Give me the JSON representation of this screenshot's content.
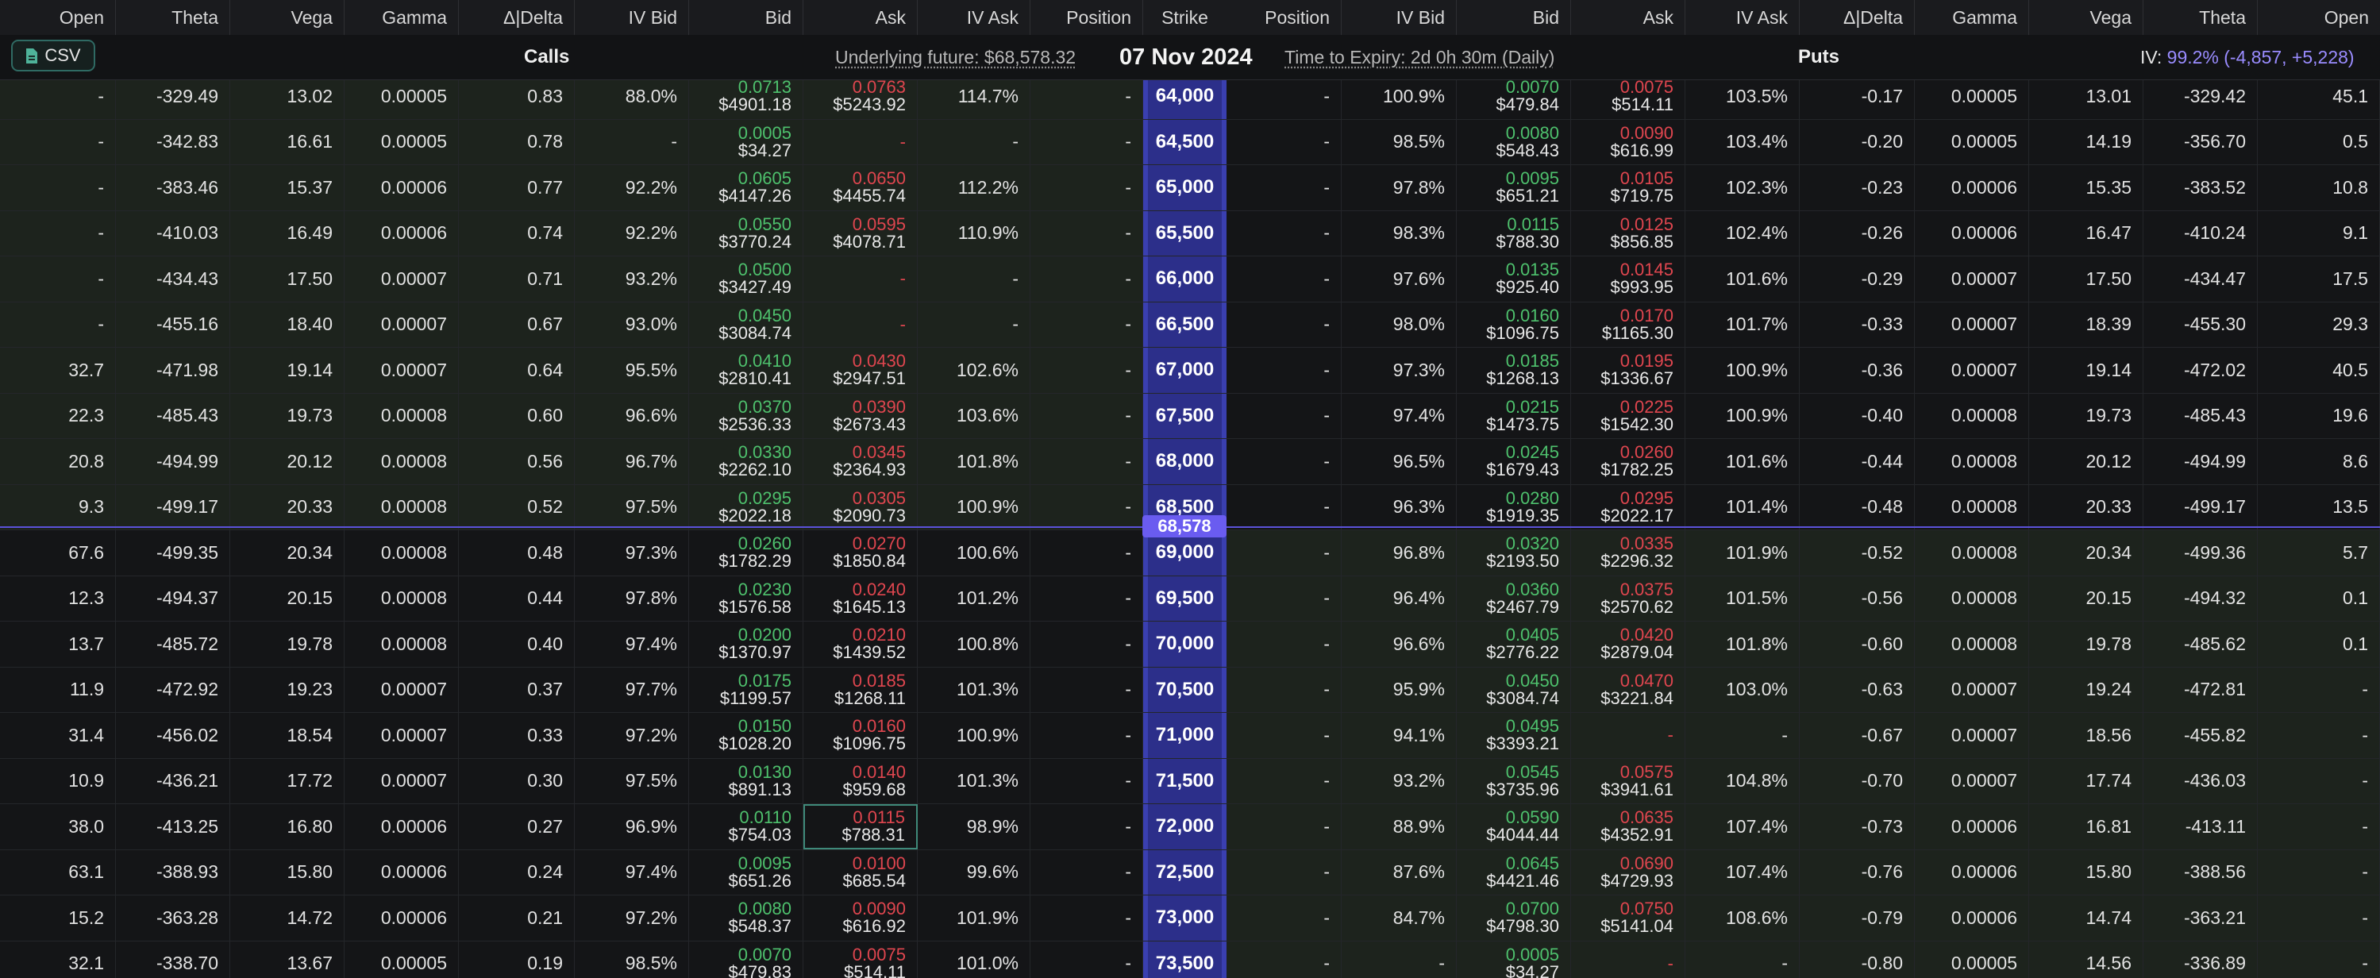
{
  "header": {
    "call_cols": [
      "Open",
      "Theta",
      "Vega",
      "Gamma",
      "Δ|Delta",
      "IV Bid",
      "Bid",
      "Ask",
      "IV Ask",
      "Position"
    ],
    "strike_col": "Strike",
    "put_cols": [
      "Position",
      "IV Bid",
      "Bid",
      "Ask",
      "IV Ask",
      "Δ|Delta",
      "Gamma",
      "Vega",
      "Theta",
      "Open"
    ]
  },
  "infobar": {
    "csv_label": "CSV",
    "calls_label": "Calls",
    "underlying_label": "Underlying future: $68,578.32",
    "date": "07 Nov 2024",
    "expiry_label": "Time to Expiry: 2d 0h 30m (Daily)",
    "puts_label": "Puts",
    "iv_prefix": "IV:",
    "iv_value": "99.2% (-4,857, +5,228)"
  },
  "underlying_price": "68,578",
  "colors": {
    "bid": "#4ec16d",
    "ask": "#e0464f",
    "strike_bg": "#2c2f8a",
    "accent": "#6a5cf0"
  },
  "rows": [
    {
      "strike": "64,000",
      "c": {
        "open": "-",
        "theta": "-329.49",
        "vega": "13.02",
        "gamma": "0.00005",
        "delta": "0.83",
        "ivbid": "88.0%",
        "bid": [
          "0.0713",
          "$4901.18"
        ],
        "ask": [
          "0.0763",
          "$5243.92"
        ],
        "ivask": "114.7%",
        "pos": "-"
      },
      "p": {
        "pos": "-",
        "ivbid": "100.9%",
        "bid": [
          "0.0070",
          "$479.84"
        ],
        "ask": [
          "0.0075",
          "$514.11"
        ],
        "ivask": "103.5%",
        "delta": "-0.17",
        "gamma": "0.00005",
        "vega": "13.01",
        "theta": "-329.42",
        "open": "45.1"
      }
    },
    {
      "strike": "64,500",
      "c": {
        "open": "-",
        "theta": "-342.83",
        "vega": "16.61",
        "gamma": "0.00005",
        "delta": "0.78",
        "ivbid": "-",
        "bid": [
          "0.0005",
          "$34.27"
        ],
        "ask": [
          "-",
          ""
        ],
        "ivask": "-",
        "pos": "-"
      },
      "p": {
        "pos": "-",
        "ivbid": "98.5%",
        "bid": [
          "0.0080",
          "$548.43"
        ],
        "ask": [
          "0.0090",
          "$616.99"
        ],
        "ivask": "103.4%",
        "delta": "-0.20",
        "gamma": "0.00005",
        "vega": "14.19",
        "theta": "-356.70",
        "open": "0.5"
      }
    },
    {
      "strike": "65,000",
      "c": {
        "open": "-",
        "theta": "-383.46",
        "vega": "15.37",
        "gamma": "0.00006",
        "delta": "0.77",
        "ivbid": "92.2%",
        "bid": [
          "0.0605",
          "$4147.26"
        ],
        "ask": [
          "0.0650",
          "$4455.74"
        ],
        "ivask": "112.2%",
        "pos": "-"
      },
      "p": {
        "pos": "-",
        "ivbid": "97.8%",
        "bid": [
          "0.0095",
          "$651.21"
        ],
        "ask": [
          "0.0105",
          "$719.75"
        ],
        "ivask": "102.3%",
        "delta": "-0.23",
        "gamma": "0.00006",
        "vega": "15.35",
        "theta": "-383.52",
        "open": "10.8"
      }
    },
    {
      "strike": "65,500",
      "c": {
        "open": "-",
        "theta": "-410.03",
        "vega": "16.49",
        "gamma": "0.00006",
        "delta": "0.74",
        "ivbid": "92.2%",
        "bid": [
          "0.0550",
          "$3770.24"
        ],
        "ask": [
          "0.0595",
          "$4078.71"
        ],
        "ivask": "110.9%",
        "pos": "-"
      },
      "p": {
        "pos": "-",
        "ivbid": "98.3%",
        "bid": [
          "0.0115",
          "$788.30"
        ],
        "ask": [
          "0.0125",
          "$856.85"
        ],
        "ivask": "102.4%",
        "delta": "-0.26",
        "gamma": "0.00006",
        "vega": "16.47",
        "theta": "-410.24",
        "open": "9.1"
      }
    },
    {
      "strike": "66,000",
      "c": {
        "open": "-",
        "theta": "-434.43",
        "vega": "17.50",
        "gamma": "0.00007",
        "delta": "0.71",
        "ivbid": "93.2%",
        "bid": [
          "0.0500",
          "$3427.49"
        ],
        "ask": [
          "-",
          ""
        ],
        "ivask": "-",
        "pos": "-"
      },
      "p": {
        "pos": "-",
        "ivbid": "97.6%",
        "bid": [
          "0.0135",
          "$925.40"
        ],
        "ask": [
          "0.0145",
          "$993.95"
        ],
        "ivask": "101.6%",
        "delta": "-0.29",
        "gamma": "0.00007",
        "vega": "17.50",
        "theta": "-434.47",
        "open": "17.5"
      }
    },
    {
      "strike": "66,500",
      "c": {
        "open": "-",
        "theta": "-455.16",
        "vega": "18.40",
        "gamma": "0.00007",
        "delta": "0.67",
        "ivbid": "93.0%",
        "bid": [
          "0.0450",
          "$3084.74"
        ],
        "ask": [
          "-",
          ""
        ],
        "ivask": "-",
        "pos": "-"
      },
      "p": {
        "pos": "-",
        "ivbid": "98.0%",
        "bid": [
          "0.0160",
          "$1096.75"
        ],
        "ask": [
          "0.0170",
          "$1165.30"
        ],
        "ivask": "101.7%",
        "delta": "-0.33",
        "gamma": "0.00007",
        "vega": "18.39",
        "theta": "-455.30",
        "open": "29.3"
      }
    },
    {
      "strike": "67,000",
      "c": {
        "open": "32.7",
        "theta": "-471.98",
        "vega": "19.14",
        "gamma": "0.00007",
        "delta": "0.64",
        "ivbid": "95.5%",
        "bid": [
          "0.0410",
          "$2810.41"
        ],
        "ask": [
          "0.0430",
          "$2947.51"
        ],
        "ivask": "102.6%",
        "pos": "-"
      },
      "p": {
        "pos": "-",
        "ivbid": "97.3%",
        "bid": [
          "0.0185",
          "$1268.13"
        ],
        "ask": [
          "0.0195",
          "$1336.67"
        ],
        "ivask": "100.9%",
        "delta": "-0.36",
        "gamma": "0.00007",
        "vega": "19.14",
        "theta": "-472.02",
        "open": "40.5"
      }
    },
    {
      "strike": "67,500",
      "c": {
        "open": "22.3",
        "theta": "-485.43",
        "vega": "19.73",
        "gamma": "0.00008",
        "delta": "0.60",
        "ivbid": "96.6%",
        "bid": [
          "0.0370",
          "$2536.33"
        ],
        "ask": [
          "0.0390",
          "$2673.43"
        ],
        "ivask": "103.6%",
        "pos": "-"
      },
      "p": {
        "pos": "-",
        "ivbid": "97.4%",
        "bid": [
          "0.0215",
          "$1473.75"
        ],
        "ask": [
          "0.0225",
          "$1542.30"
        ],
        "ivask": "100.9%",
        "delta": "-0.40",
        "gamma": "0.00008",
        "vega": "19.73",
        "theta": "-485.43",
        "open": "19.6"
      }
    },
    {
      "strike": "68,000",
      "c": {
        "open": "20.8",
        "theta": "-494.99",
        "vega": "20.12",
        "gamma": "0.00008",
        "delta": "0.56",
        "ivbid": "96.7%",
        "bid": [
          "0.0330",
          "$2262.10"
        ],
        "ask": [
          "0.0345",
          "$2364.93"
        ],
        "ivask": "101.8%",
        "pos": "-"
      },
      "p": {
        "pos": "-",
        "ivbid": "96.5%",
        "bid": [
          "0.0245",
          "$1679.43"
        ],
        "ask": [
          "0.0260",
          "$1782.25"
        ],
        "ivask": "101.6%",
        "delta": "-0.44",
        "gamma": "0.00008",
        "vega": "20.12",
        "theta": "-494.99",
        "open": "8.6"
      }
    },
    {
      "strike": "68,500",
      "c": {
        "open": "9.3",
        "theta": "-499.17",
        "vega": "20.33",
        "gamma": "0.00008",
        "delta": "0.52",
        "ivbid": "97.5%",
        "bid": [
          "0.0295",
          "$2022.18"
        ],
        "ask": [
          "0.0305",
          "$2090.73"
        ],
        "ivask": "100.9%",
        "pos": "-"
      },
      "p": {
        "pos": "-",
        "ivbid": "96.3%",
        "bid": [
          "0.0280",
          "$1919.35"
        ],
        "ask": [
          "0.0295",
          "$2022.17"
        ],
        "ivask": "101.4%",
        "delta": "-0.48",
        "gamma": "0.00008",
        "vega": "20.33",
        "theta": "-499.17",
        "open": "13.5"
      }
    },
    {
      "strike": "69,000",
      "c": {
        "open": "67.6",
        "theta": "-499.35",
        "vega": "20.34",
        "gamma": "0.00008",
        "delta": "0.48",
        "ivbid": "97.3%",
        "bid": [
          "0.0260",
          "$1782.29"
        ],
        "ask": [
          "0.0270",
          "$1850.84"
        ],
        "ivask": "100.6%",
        "pos": "-"
      },
      "p": {
        "pos": "-",
        "ivbid": "96.8%",
        "bid": [
          "0.0320",
          "$2193.50"
        ],
        "ask": [
          "0.0335",
          "$2296.32"
        ],
        "ivask": "101.9%",
        "delta": "-0.52",
        "gamma": "0.00008",
        "vega": "20.34",
        "theta": "-499.36",
        "open": "5.7"
      }
    },
    {
      "strike": "69,500",
      "c": {
        "open": "12.3",
        "theta": "-494.37",
        "vega": "20.15",
        "gamma": "0.00008",
        "delta": "0.44",
        "ivbid": "97.8%",
        "bid": [
          "0.0230",
          "$1576.58"
        ],
        "ask": [
          "0.0240",
          "$1645.13"
        ],
        "ivask": "101.2%",
        "pos": "-"
      },
      "p": {
        "pos": "-",
        "ivbid": "96.4%",
        "bid": [
          "0.0360",
          "$2467.79"
        ],
        "ask": [
          "0.0375",
          "$2570.62"
        ],
        "ivask": "101.5%",
        "delta": "-0.56",
        "gamma": "0.00008",
        "vega": "20.15",
        "theta": "-494.32",
        "open": "0.1"
      }
    },
    {
      "strike": "70,000",
      "c": {
        "open": "13.7",
        "theta": "-485.72",
        "vega": "19.78",
        "gamma": "0.00008",
        "delta": "0.40",
        "ivbid": "97.4%",
        "bid": [
          "0.0200",
          "$1370.97"
        ],
        "ask": [
          "0.0210",
          "$1439.52"
        ],
        "ivask": "100.8%",
        "pos": "-"
      },
      "p": {
        "pos": "-",
        "ivbid": "96.6%",
        "bid": [
          "0.0405",
          "$2776.22"
        ],
        "ask": [
          "0.0420",
          "$2879.04"
        ],
        "ivask": "101.8%",
        "delta": "-0.60",
        "gamma": "0.00008",
        "vega": "19.78",
        "theta": "-485.62",
        "open": "0.1"
      }
    },
    {
      "strike": "70,500",
      "c": {
        "open": "11.9",
        "theta": "-472.92",
        "vega": "19.23",
        "gamma": "0.00007",
        "delta": "0.37",
        "ivbid": "97.7%",
        "bid": [
          "0.0175",
          "$1199.57"
        ],
        "ask": [
          "0.0185",
          "$1268.11"
        ],
        "ivask": "101.3%",
        "pos": "-"
      },
      "p": {
        "pos": "-",
        "ivbid": "95.9%",
        "bid": [
          "0.0450",
          "$3084.74"
        ],
        "ask": [
          "0.0470",
          "$3221.84"
        ],
        "ivask": "103.0%",
        "delta": "-0.63",
        "gamma": "0.00007",
        "vega": "19.24",
        "theta": "-472.81",
        "open": "-"
      }
    },
    {
      "strike": "71,000",
      "c": {
        "open": "31.4",
        "theta": "-456.02",
        "vega": "18.54",
        "gamma": "0.00007",
        "delta": "0.33",
        "ivbid": "97.2%",
        "bid": [
          "0.0150",
          "$1028.20"
        ],
        "ask": [
          "0.0160",
          "$1096.75"
        ],
        "ivask": "100.9%",
        "pos": "-"
      },
      "p": {
        "pos": "-",
        "ivbid": "94.1%",
        "bid": [
          "0.0495",
          "$3393.21"
        ],
        "ask": [
          "-",
          ""
        ],
        "ivask": "-",
        "delta": "-0.67",
        "gamma": "0.00007",
        "vega": "18.56",
        "theta": "-455.82",
        "open": "-"
      }
    },
    {
      "strike": "71,500",
      "c": {
        "open": "10.9",
        "theta": "-436.21",
        "vega": "17.72",
        "gamma": "0.00007",
        "delta": "0.30",
        "ivbid": "97.5%",
        "bid": [
          "0.0130",
          "$891.13"
        ],
        "ask": [
          "0.0140",
          "$959.68"
        ],
        "ivask": "101.3%",
        "pos": "-"
      },
      "p": {
        "pos": "-",
        "ivbid": "93.2%",
        "bid": [
          "0.0545",
          "$3735.96"
        ],
        "ask": [
          "0.0575",
          "$3941.61"
        ],
        "ivask": "104.8%",
        "delta": "-0.70",
        "gamma": "0.00007",
        "vega": "17.74",
        "theta": "-436.03",
        "open": "-"
      }
    },
    {
      "strike": "72,000",
      "c": {
        "open": "38.0",
        "theta": "-413.25",
        "vega": "16.80",
        "gamma": "0.00006",
        "delta": "0.27",
        "ivbid": "96.9%",
        "bid": [
          "0.0110",
          "$754.03"
        ],
        "ask": [
          "0.0115",
          "$788.31"
        ],
        "ivask": "98.9%",
        "pos": "-"
      },
      "p": {
        "pos": "-",
        "ivbid": "88.9%",
        "bid": [
          "0.0590",
          "$4044.44"
        ],
        "ask": [
          "0.0635",
          "$4352.91"
        ],
        "ivask": "107.4%",
        "delta": "-0.73",
        "gamma": "0.00006",
        "vega": "16.81",
        "theta": "-413.11",
        "open": "-"
      }
    },
    {
      "strike": "72,500",
      "c": {
        "open": "63.1",
        "theta": "-388.93",
        "vega": "15.80",
        "gamma": "0.00006",
        "delta": "0.24",
        "ivbid": "97.4%",
        "bid": [
          "0.0095",
          "$651.26"
        ],
        "ask": [
          "0.0100",
          "$685.54"
        ],
        "ivask": "99.6%",
        "pos": "-"
      },
      "p": {
        "pos": "-",
        "ivbid": "87.6%",
        "bid": [
          "0.0645",
          "$4421.46"
        ],
        "ask": [
          "0.0690",
          "$4729.93"
        ],
        "ivask": "107.4%",
        "delta": "-0.76",
        "gamma": "0.00006",
        "vega": "15.80",
        "theta": "-388.56",
        "open": "-"
      }
    },
    {
      "strike": "73,000",
      "c": {
        "open": "15.2",
        "theta": "-363.28",
        "vega": "14.72",
        "gamma": "0.00006",
        "delta": "0.21",
        "ivbid": "97.2%",
        "bid": [
          "0.0080",
          "$548.37"
        ],
        "ask": [
          "0.0090",
          "$616.92"
        ],
        "ivask": "101.9%",
        "pos": "-"
      },
      "p": {
        "pos": "-",
        "ivbid": "84.7%",
        "bid": [
          "0.0700",
          "$4798.30"
        ],
        "ask": [
          "0.0750",
          "$5141.04"
        ],
        "ivask": "108.6%",
        "delta": "-0.79",
        "gamma": "0.00006",
        "vega": "14.74",
        "theta": "-363.21",
        "open": "-"
      }
    },
    {
      "strike": "73,500",
      "c": {
        "open": "32.1",
        "theta": "-338.70",
        "vega": "13.67",
        "gamma": "0.00005",
        "delta": "0.19",
        "ivbid": "98.5%",
        "bid": [
          "0.0070",
          "$479.83"
        ],
        "ask": [
          "0.0075",
          "$514.11"
        ],
        "ivask": "101.0%",
        "pos": "-"
      },
      "p": {
        "pos": "-",
        "ivbid": "-",
        "bid": [
          "0.0005",
          "$34.27"
        ],
        "ask": [
          "-",
          ""
        ],
        "ivask": "-",
        "delta": "-0.80",
        "gamma": "0.00005",
        "vega": "14.56",
        "theta": "-336.89",
        "open": "-"
      }
    }
  ]
}
